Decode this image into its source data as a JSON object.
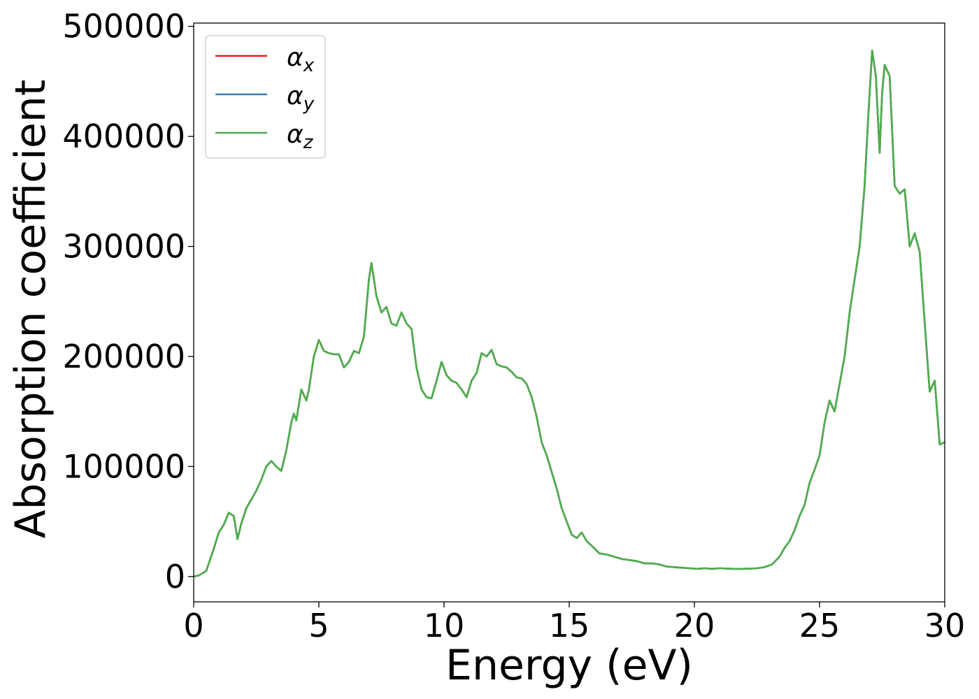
{
  "chart_data": {
    "type": "line",
    "title": "",
    "xlabel": "Energy (eV)",
    "ylabel": "Absorption coefficient",
    "xlim": [
      0,
      30
    ],
    "ylim": [
      -23000,
      503000
    ],
    "xticks": [
      0,
      5,
      10,
      15,
      20,
      25,
      30
    ],
    "xtick_labels": [
      "0",
      "5",
      "10",
      "15",
      "20",
      "25",
      "30"
    ],
    "yticks": [
      0,
      100000,
      200000,
      300000,
      400000,
      500000
    ],
    "ytick_labels": [
      "0",
      "100000",
      "200000",
      "300000",
      "400000",
      "500000"
    ],
    "grid": false,
    "legend_position": "upper-left",
    "series": [
      {
        "name": "α_x",
        "legend_main": "α",
        "legend_sub": "x",
        "color": "#e41a1c",
        "data_ref": "shared"
      },
      {
        "name": "α_y",
        "legend_main": "α",
        "legend_sub": "y",
        "color": "#377eb8",
        "data_ref": "shared"
      },
      {
        "name": "α_z",
        "legend_main": "α",
        "legend_sub": "z",
        "color": "#4daf4a",
        "data_ref": "shared"
      }
    ],
    "x": [
      0,
      0.2,
      0.5,
      0.8,
      1.0,
      1.2,
      1.4,
      1.6,
      1.75,
      1.9,
      2.1,
      2.3,
      2.5,
      2.7,
      2.9,
      3.1,
      3.3,
      3.5,
      3.7,
      3.9,
      4.0,
      4.1,
      4.3,
      4.5,
      4.6,
      4.8,
      5.0,
      5.2,
      5.4,
      5.6,
      5.8,
      6.0,
      6.2,
      6.4,
      6.6,
      6.8,
      7.0,
      7.1,
      7.3,
      7.5,
      7.7,
      7.9,
      8.1,
      8.3,
      8.5,
      8.7,
      8.9,
      9.1,
      9.3,
      9.5,
      9.7,
      9.9,
      10.1,
      10.3,
      10.5,
      10.7,
      10.9,
      11.1,
      11.3,
      11.5,
      11.7,
      11.9,
      12.1,
      12.3,
      12.5,
      12.7,
      12.9,
      13.1,
      13.3,
      13.5,
      13.7,
      13.9,
      14.1,
      14.3,
      14.5,
      14.7,
      14.9,
      15.1,
      15.3,
      15.5,
      15.7,
      15.9,
      16.2,
      16.5,
      16.8,
      17.1,
      17.4,
      17.7,
      18.0,
      18.3,
      18.6,
      18.9,
      19.2,
      19.5,
      19.8,
      20.1,
      20.4,
      20.7,
      21.0,
      21.3,
      21.6,
      21.9,
      22.2,
      22.5,
      22.8,
      23.1,
      23.4,
      23.6,
      23.8,
      24.0,
      24.2,
      24.4,
      24.6,
      24.8,
      25.0,
      25.2,
      25.4,
      25.6,
      25.8,
      26.0,
      26.2,
      26.4,
      26.6,
      26.8,
      26.95,
      27.1,
      27.25,
      27.4,
      27.5,
      27.6,
      27.8,
      28.0,
      28.2,
      28.4,
      28.6,
      28.8,
      29.0,
      29.2,
      29.4,
      29.6,
      29.8,
      30.0
    ],
    "y": [
      0,
      1000,
      5000,
      25000,
      40000,
      47000,
      58000,
      55000,
      34000,
      48000,
      62000,
      70000,
      78000,
      88000,
      100000,
      105000,
      100000,
      96000,
      115000,
      140000,
      148000,
      142000,
      170000,
      160000,
      170000,
      200000,
      215000,
      205000,
      203000,
      202000,
      202000,
      190000,
      195000,
      205000,
      203000,
      218000,
      270000,
      285000,
      255000,
      240000,
      245000,
      230000,
      228000,
      240000,
      230000,
      225000,
      190000,
      170000,
      163000,
      162000,
      178000,
      195000,
      183000,
      178000,
      176000,
      170000,
      163000,
      178000,
      185000,
      203000,
      200000,
      206000,
      193000,
      191000,
      190000,
      186000,
      181000,
      180000,
      175000,
      163000,
      145000,
      122000,
      110000,
      95000,
      80000,
      62000,
      50000,
      38000,
      35000,
      40000,
      32000,
      28000,
      21000,
      20000,
      18000,
      16000,
      15000,
      14000,
      12000,
      12000,
      11000,
      9000,
      8500,
      8000,
      7500,
      7000,
      7500,
      7000,
      7500,
      7200,
      7000,
      7000,
      7200,
      7500,
      8500,
      11000,
      18000,
      26000,
      32000,
      42000,
      55000,
      65000,
      85000,
      97000,
      110000,
      140000,
      160000,
      150000,
      175000,
      200000,
      240000,
      270000,
      300000,
      355000,
      420000,
      478000,
      455000,
      385000,
      440000,
      465000,
      455000,
      355000,
      348000,
      352000,
      300000,
      312000,
      295000,
      230000,
      168000,
      178000,
      120000,
      122000
    ]
  },
  "colors": {
    "background": "#ffffff",
    "axes": "#000000"
  }
}
